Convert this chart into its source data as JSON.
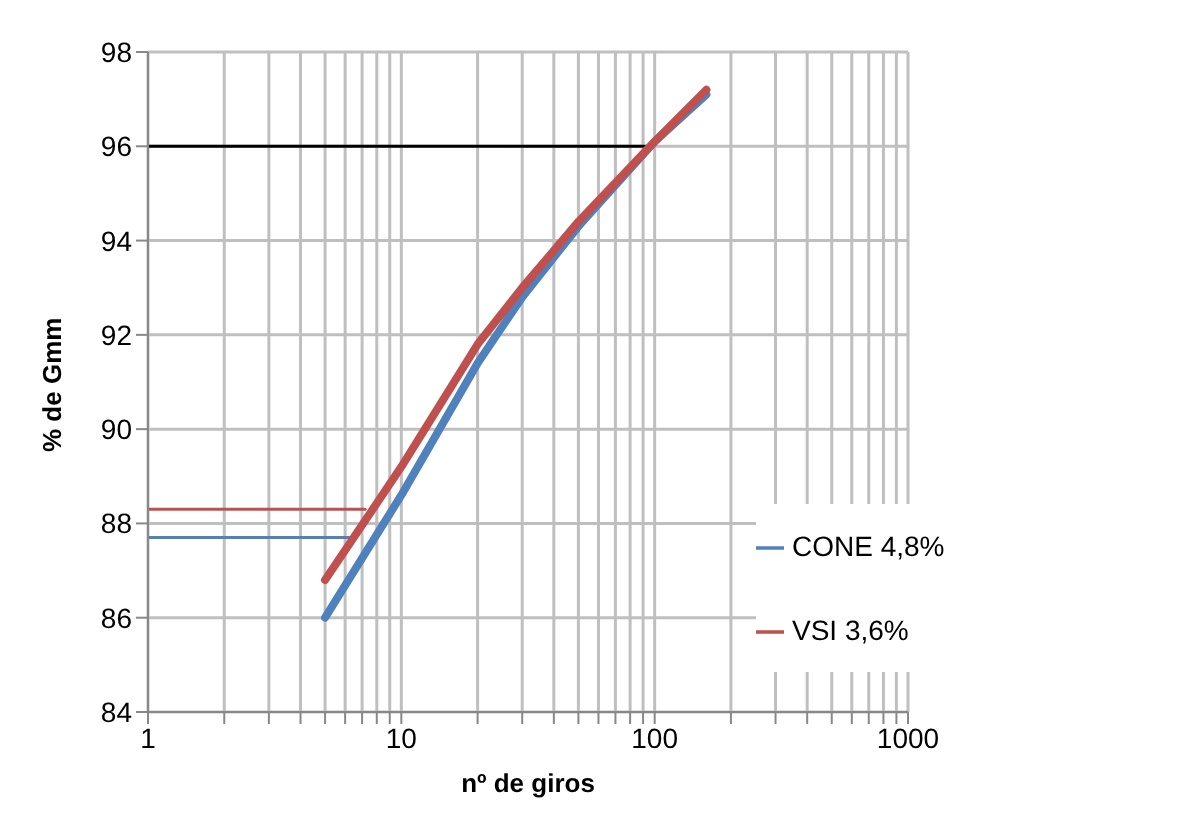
{
  "chart_data": {
    "type": "line",
    "xlabel": "nº de giros",
    "ylabel": "% de Gmm",
    "log": "x",
    "xlim": [
      1,
      1000
    ],
    "ylim": [
      84,
      98
    ],
    "xticks": [
      1,
      {
        "value": 2,
        "label": null
      },
      {
        "value": 3,
        "label": null
      },
      {
        "value": 4,
        "label": null
      },
      {
        "value": 5,
        "label": null
      },
      {
        "value": 6,
        "label": null
      },
      {
        "value": 7,
        "label": null
      },
      {
        "value": 8,
        "label": null
      },
      {
        "value": 9,
        "label": null
      },
      10,
      {
        "value": 20,
        "label": null
      },
      {
        "value": 30,
        "label": null
      },
      {
        "value": 40,
        "label": null
      },
      {
        "value": 50,
        "label": null
      },
      {
        "value": 60,
        "label": null
      },
      {
        "value": 70,
        "label": null
      },
      {
        "value": 80,
        "label": null
      },
      {
        "value": 90,
        "label": null
      },
      100,
      {
        "value": 200,
        "label": null
      },
      {
        "value": 300,
        "label": null
      },
      {
        "value": 400,
        "label": null
      },
      {
        "value": 500,
        "label": null
      },
      {
        "value": 600,
        "label": null
      },
      {
        "value": 700,
        "label": null
      },
      {
        "value": 800,
        "label": null
      },
      {
        "value": 900,
        "label": null
      },
      1000
    ],
    "yticks": [
      84,
      86,
      88,
      90,
      92,
      94,
      96,
      98
    ],
    "grid": true,
    "legend": "bottom right",
    "marker": "none",
    "line_style": "solid",
    "series": [
      {
        "color": "#000000",
        "x": [
          1,
          92
        ],
        "values": [
          96,
          96
        ]
      },
      {
        "color": "#c0504d",
        "x": [
          1,
          7.2
        ],
        "values": [
          88.3,
          88.3
        ]
      },
      {
        "color": "#4f81bd",
        "x": [
          1,
          6.5
        ],
        "values": [
          87.7,
          87.7
        ]
      },
      {
        "name": "CONE 4,8%",
        "color": "#4f81bd",
        "x": [
          5,
          10,
          20,
          30,
          50,
          100,
          160
        ],
        "values": [
          86.0,
          88.6,
          91.4,
          92.8,
          94.3,
          96.1,
          97.1
        ]
      },
      {
        "name": "VSI 3,6%",
        "color": "#c0504d",
        "x": [
          5,
          10,
          20,
          30,
          50,
          100,
          160
        ],
        "values": [
          86.8,
          89.2,
          91.8,
          93.0,
          94.4,
          96.1,
          97.2
        ]
      }
    ]
  }
}
